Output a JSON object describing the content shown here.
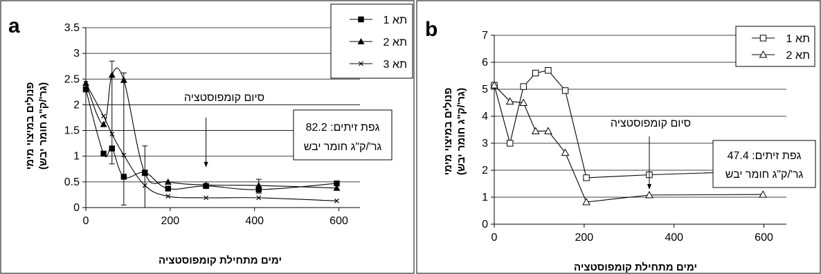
{
  "chart_data": [
    {
      "type": "line",
      "panel_label": "a",
      "xlabel": "ימים מתחילת קומפוסטציה",
      "ylabel_line1": "פנולים במיצוי מימי",
      "ylabel_line2": "(גר'/ק\"ג חומר יבש)",
      "xlim": [
        0,
        650
      ],
      "ylim": [
        0,
        3.5
      ],
      "xticks": [
        0,
        200,
        400,
        600
      ],
      "yticks": [
        0,
        0.5,
        1,
        1.5,
        2,
        2.5,
        3,
        3.5
      ],
      "ytick_labels": [
        "0",
        "0.5",
        "1",
        "1.5",
        "2",
        "2.5",
        "3",
        "3.5"
      ],
      "grid": "horizontal",
      "legend_position": "top-right",
      "series": [
        {
          "name": "תא 1",
          "marker": "square-filled",
          "x": [
            0,
            42,
            62,
            90,
            140,
            195,
            285,
            410,
            595
          ],
          "y": [
            2.3,
            1.05,
            1.15,
            0.6,
            0.68,
            0.37,
            0.42,
            0.35,
            0.47
          ]
        },
        {
          "name": "תא 2",
          "marker": "triangle-filled",
          "x": [
            0,
            42,
            62,
            90,
            140,
            195,
            285,
            410,
            595
          ],
          "y": [
            2.42,
            1.62,
            2.58,
            2.48,
            0.67,
            0.5,
            0.44,
            0.43,
            0.38
          ]
        },
        {
          "name": "תא 3",
          "marker": "x",
          "x": [
            0,
            42,
            62,
            90,
            140,
            195,
            285,
            410,
            595
          ],
          "y": [
            2.42,
            1.78,
            1.43,
            1.02,
            0.43,
            0.22,
            0.19,
            0.19,
            0.13
          ]
        }
      ],
      "error_bars": [
        {
          "x": 62,
          "low": 0.85,
          "high": 2.85
        },
        {
          "x": 90,
          "low": 0.05,
          "high": 2.62
        },
        {
          "x": 140,
          "low": 0.0,
          "high": 1.2
        },
        {
          "x": 410,
          "low": 0.28,
          "high": 0.55
        }
      ],
      "annotation_text": "סיום קומפוסטציה",
      "annotation_arrow_x": 285,
      "note_line1": "גפת זיתים: 82.2",
      "note_line2": "גר'/ק\"ג חומר יבש"
    },
    {
      "type": "line",
      "panel_label": "b",
      "xlabel": "ימים מתחילת קומפוסטציה",
      "ylabel_line1": "פנולים במיצוי מימי",
      "ylabel_line2": "(גר'/ק\"ג חומר יבש)",
      "xlim": [
        0,
        650
      ],
      "ylim": [
        0,
        7
      ],
      "xticks": [
        0,
        200,
        400,
        600
      ],
      "yticks": [
        0,
        1,
        2,
        3,
        4,
        5,
        6,
        7
      ],
      "ytick_labels": [
        "0",
        "1",
        "2",
        "3",
        "4",
        "5",
        "6",
        "7"
      ],
      "grid": "horizontal",
      "legend_position": "top-right",
      "series": [
        {
          "name": "תא 1",
          "marker": "square-open",
          "x": [
            0,
            35,
            65,
            92,
            120,
            158,
            205,
            345,
            598
          ],
          "y": [
            5.15,
            3.0,
            5.1,
            5.6,
            5.7,
            4.95,
            1.72,
            1.83,
            1.97
          ]
        },
        {
          "name": "תא 2",
          "marker": "triangle-open",
          "x": [
            0,
            35,
            65,
            92,
            120,
            158,
            205,
            345,
            598
          ],
          "y": [
            5.15,
            4.55,
            4.5,
            3.45,
            3.45,
            2.65,
            0.82,
            1.08,
            1.1
          ]
        }
      ],
      "annotation_text": "סיום קומפוסטציה",
      "annotation_arrow_x": 345,
      "note_line1": "גפת זיתים: 47.4",
      "note_line2": "גר'/ק\"ג חומר יבש"
    }
  ]
}
